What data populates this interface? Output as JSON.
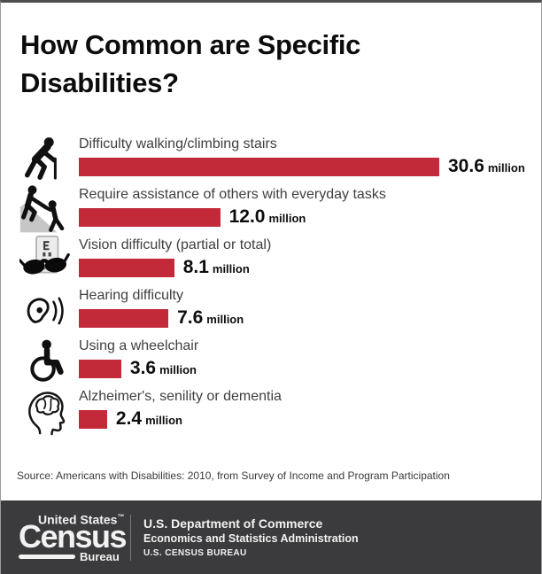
{
  "title": {
    "line1": "How Common are Specific",
    "line2": "Disabilities?"
  },
  "chart_data": {
    "type": "bar",
    "orientation": "horizontal",
    "title": "How Common are Specific Disabilities?",
    "unit": "million",
    "categories": [
      "Difficulty walking/climbing stairs",
      "Require assistance of others with everyday tasks",
      "Vision difficulty (partial or total)",
      "Hearing difficulty",
      "Using a wheelchair",
      "Alzheimer's, senility or dementia"
    ],
    "values": [
      30.6,
      12.0,
      8.1,
      7.6,
      3.6,
      2.4
    ],
    "value_labels": [
      "30.6",
      "12.0",
      "8.1",
      "7.6",
      "3.6",
      "2.4"
    ],
    "xlim": [
      0,
      30.6
    ],
    "grid": false,
    "legend": false,
    "bar_color": "#c22a3a",
    "icons": [
      "elderly-walking-cane",
      "helping-hand-uphill",
      "dark-glasses-eye-chart",
      "ear-hearing-aid",
      "wheelchair",
      "head-brain-profile"
    ],
    "source": "Source: Americans with Disabilities: 2010, from Survey of Income and Program Participation"
  },
  "rows": [
    {
      "label": "Difficulty walking/climbing stairs",
      "value": "30.6",
      "unit": "million"
    },
    {
      "label": "Require assistance of others with everyday tasks",
      "value": "12.0",
      "unit": "million"
    },
    {
      "label": "Vision difficulty (partial or total)",
      "value": "8.1",
      "unit": "million"
    },
    {
      "label": "Hearing difficulty",
      "value": "7.6",
      "unit": "million"
    },
    {
      "label": "Using a wheelchair",
      "value": "3.6",
      "unit": "million"
    },
    {
      "label": "Alzheimer's, senility or dementia",
      "value": "2.4",
      "unit": "million"
    }
  ],
  "source": "Source: Americans with Disabilities: 2010, from Survey of Income and Program Participation",
  "footer": {
    "logo_top": "United States",
    "logo_tm": "™",
    "logo_main": "Census",
    "logo_sub": "Bureau",
    "line1": "U.S. Department of Commerce",
    "line2": "Economics and Statistics Administration",
    "line3": "U.S. CENSUS BUREAU"
  },
  "colors": {
    "bar": "#c22a3a",
    "footer_bg": "#3b3b3d"
  }
}
